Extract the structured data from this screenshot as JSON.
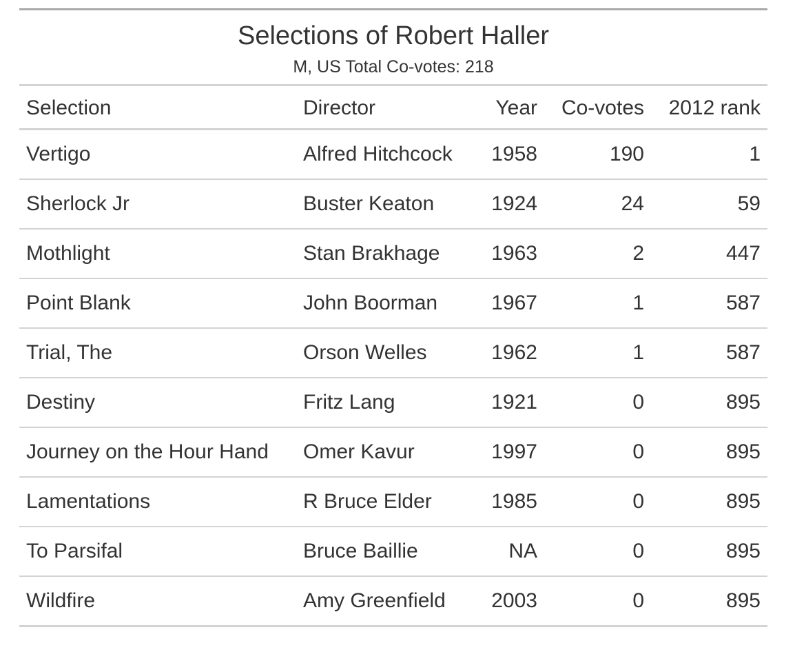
{
  "title": "Selections of Robert Haller",
  "subtitle": "M, US Total Co-votes: 218",
  "columns": {
    "selection": "Selection",
    "director": "Director",
    "year": "Year",
    "covotes": "Co-votes",
    "rank": "2012 rank"
  },
  "rows": [
    {
      "selection": "Vertigo",
      "director": "Alfred Hitchcock",
      "year": "1958",
      "covotes": "190",
      "rank": "1"
    },
    {
      "selection": "Sherlock Jr",
      "director": "Buster Keaton",
      "year": "1924",
      "covotes": "24",
      "rank": "59"
    },
    {
      "selection": "Mothlight",
      "director": "Stan Brakhage",
      "year": "1963",
      "covotes": "2",
      "rank": "447"
    },
    {
      "selection": "Point Blank",
      "director": "John Boorman",
      "year": "1967",
      "covotes": "1",
      "rank": "587"
    },
    {
      "selection": "Trial, The",
      "director": "Orson Welles",
      "year": "1962",
      "covotes": "1",
      "rank": "587"
    },
    {
      "selection": "Destiny",
      "director": "Fritz Lang",
      "year": "1921",
      "covotes": "0",
      "rank": "895"
    },
    {
      "selection": "Journey on the Hour Hand",
      "director": "Omer Kavur",
      "year": "1997",
      "covotes": "0",
      "rank": "895"
    },
    {
      "selection": "Lamentations",
      "director": "R Bruce Elder",
      "year": "1985",
      "covotes": "0",
      "rank": "895"
    },
    {
      "selection": "To Parsifal",
      "director": "Bruce Baillie",
      "year": "NA",
      "covotes": "0",
      "rank": "895"
    },
    {
      "selection": "Wildfire",
      "director": "Amy Greenfield",
      "year": "2003",
      "covotes": "0",
      "rank": "895"
    }
  ]
}
